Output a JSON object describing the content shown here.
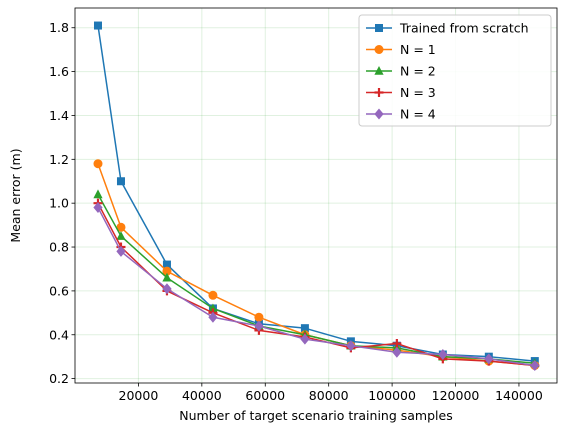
{
  "chart_data": {
    "type": "line",
    "title": "",
    "xlabel": "Number of target scenario training samples",
    "ylabel": "Mean error (m)",
    "xlim": [
      0,
      152000
    ],
    "ylim": [
      0.18,
      1.89
    ],
    "xticks": [
      20000,
      40000,
      60000,
      80000,
      100000,
      120000,
      140000
    ],
    "yticks": [
      0.2,
      0.4,
      0.6,
      0.8,
      1.0,
      1.2,
      1.4,
      1.6,
      1.8
    ],
    "xtick_labels": [
      "20000",
      "40000",
      "60000",
      "80000",
      "100000",
      "120000",
      "140000"
    ],
    "ytick_labels": [
      "0.2",
      "0.4",
      "0.6",
      "0.8",
      "1.0",
      "1.2",
      "1.4",
      "1.6",
      "1.8"
    ],
    "grid": true,
    "legend_position": "top-right",
    "x": [
      7250,
      14500,
      29000,
      43500,
      58000,
      72500,
      87000,
      101500,
      116000,
      130500,
      145000
    ],
    "series": [
      {
        "name": "Trained from scratch",
        "marker": "square",
        "color": "#1f77b4",
        "values": [
          1.81,
          1.1,
          0.72,
          0.52,
          0.45,
          0.43,
          0.37,
          0.35,
          0.31,
          0.3,
          0.28
        ]
      },
      {
        "name": "N = 1",
        "marker": "circle",
        "color": "#ff7f0e",
        "values": [
          1.18,
          0.89,
          0.69,
          0.58,
          0.48,
          0.4,
          0.35,
          0.33,
          0.3,
          0.28,
          0.26
        ]
      },
      {
        "name": "N = 2",
        "marker": "triangle",
        "color": "#2ca02c",
        "values": [
          1.04,
          0.85,
          0.66,
          0.52,
          0.44,
          0.4,
          0.35,
          0.34,
          0.3,
          0.29,
          0.27
        ]
      },
      {
        "name": "N = 3",
        "marker": "plus",
        "color": "#d62728",
        "values": [
          1.0,
          0.8,
          0.6,
          0.5,
          0.42,
          0.39,
          0.34,
          0.36,
          0.29,
          0.28,
          0.26
        ]
      },
      {
        "name": "N = 4",
        "marker": "diamond",
        "color": "#9467bd",
        "values": [
          0.98,
          0.78,
          0.61,
          0.48,
          0.44,
          0.38,
          0.35,
          0.32,
          0.31,
          0.29,
          0.26
        ]
      }
    ]
  }
}
